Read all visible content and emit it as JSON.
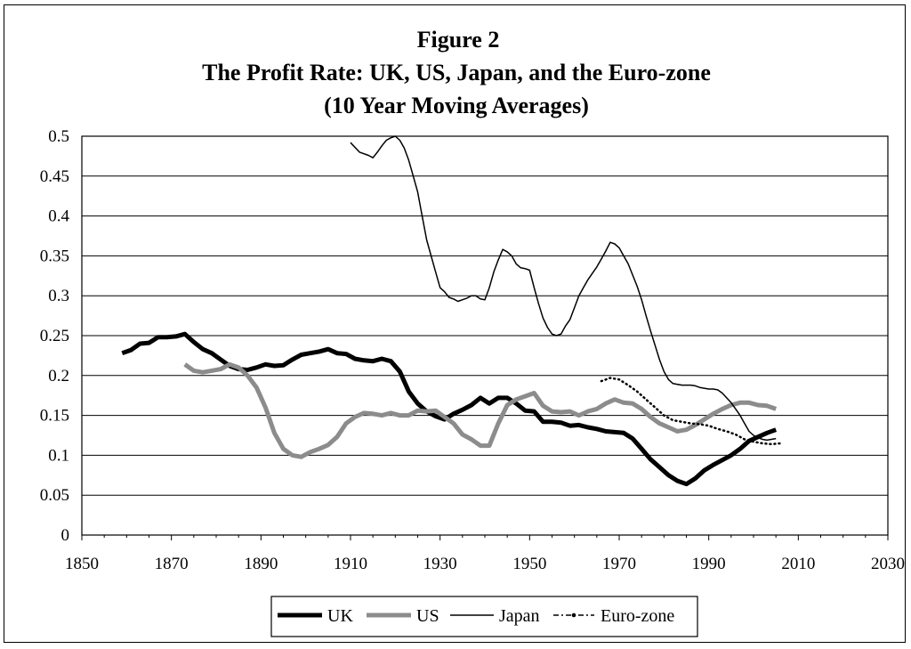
{
  "chart_data": {
    "type": "line",
    "title": "Figure 2",
    "subtitle": "The Profit Rate: UK, US, Japan, and the Euro-zone",
    "subtitle2": "(10 Year Moving Averages)",
    "xlim": [
      1850,
      2030
    ],
    "ylim": [
      0,
      0.5
    ],
    "x_ticks": [
      1850,
      1870,
      1890,
      1910,
      1930,
      1950,
      1970,
      1990,
      2010,
      2030
    ],
    "y_ticks": [
      0,
      0.05,
      0.1,
      0.15,
      0.2,
      0.25,
      0.3,
      0.35,
      0.4,
      0.45,
      0.5
    ],
    "grid": "horizontal",
    "legend_position": "bottom",
    "series": [
      {
        "name": "UK",
        "style": "thick-solid",
        "color": "#000000",
        "x": [
          1859,
          1861,
          1863,
          1865,
          1867,
          1869,
          1871,
          1873,
          1875,
          1877,
          1879,
          1881,
          1883,
          1885,
          1887,
          1889,
          1891,
          1893,
          1895,
          1897,
          1899,
          1901,
          1903,
          1905,
          1907,
          1909,
          1911,
          1913,
          1915,
          1917,
          1919,
          1921,
          1923,
          1925,
          1927,
          1929,
          1931,
          1933,
          1935,
          1937,
          1939,
          1941,
          1943,
          1945,
          1947,
          1949,
          1951,
          1953,
          1955,
          1957,
          1959,
          1961,
          1963,
          1965,
          1967,
          1969,
          1971,
          1973,
          1975,
          1977,
          1979,
          1981,
          1983,
          1985,
          1987,
          1989,
          1991,
          1993,
          1995,
          1997,
          1999,
          2001,
          2003,
          2005
        ],
        "y": [
          0.228,
          0.232,
          0.24,
          0.241,
          0.248,
          0.248,
          0.249,
          0.252,
          0.242,
          0.233,
          0.228,
          0.22,
          0.212,
          0.208,
          0.207,
          0.21,
          0.214,
          0.212,
          0.213,
          0.22,
          0.226,
          0.228,
          0.23,
          0.233,
          0.228,
          0.227,
          0.221,
          0.219,
          0.218,
          0.221,
          0.218,
          0.205,
          0.18,
          0.165,
          0.155,
          0.149,
          0.145,
          0.152,
          0.157,
          0.163,
          0.172,
          0.165,
          0.172,
          0.172,
          0.165,
          0.156,
          0.155,
          0.142,
          0.142,
          0.141,
          0.137,
          0.138,
          0.135,
          0.133,
          0.13,
          0.129,
          0.128,
          0.121,
          0.108,
          0.095,
          0.085,
          0.075,
          0.068,
          0.064,
          0.071,
          0.081,
          0.088,
          0.094,
          0.1,
          0.108,
          0.118,
          0.123,
          0.128,
          0.132
        ]
      },
      {
        "name": "US",
        "style": "thick-gray",
        "color": "#8c8c8c",
        "x": [
          1873,
          1875,
          1877,
          1879,
          1881,
          1883,
          1885,
          1887,
          1889,
          1891,
          1893,
          1895,
          1897,
          1899,
          1901,
          1903,
          1905,
          1907,
          1909,
          1911,
          1913,
          1915,
          1917,
          1919,
          1921,
          1923,
          1925,
          1927,
          1929,
          1931,
          1933,
          1935,
          1937,
          1939,
          1941,
          1943,
          1945,
          1947,
          1949,
          1951,
          1953,
          1955,
          1957,
          1959,
          1961,
          1963,
          1965,
          1967,
          1969,
          1971,
          1973,
          1975,
          1977,
          1979,
          1981,
          1983,
          1985,
          1987,
          1989,
          1991,
          1993,
          1995,
          1997,
          1999,
          2001,
          2003,
          2005
        ],
        "y": [
          0.214,
          0.206,
          0.204,
          0.206,
          0.208,
          0.214,
          0.21,
          0.2,
          0.185,
          0.16,
          0.128,
          0.108,
          0.1,
          0.098,
          0.104,
          0.108,
          0.113,
          0.123,
          0.14,
          0.148,
          0.153,
          0.152,
          0.15,
          0.153,
          0.15,
          0.15,
          0.156,
          0.155,
          0.156,
          0.148,
          0.14,
          0.126,
          0.12,
          0.112,
          0.112,
          0.14,
          0.163,
          0.17,
          0.174,
          0.178,
          0.162,
          0.155,
          0.154,
          0.155,
          0.15,
          0.155,
          0.158,
          0.165,
          0.17,
          0.166,
          0.165,
          0.158,
          0.148,
          0.14,
          0.135,
          0.13,
          0.132,
          0.138,
          0.145,
          0.152,
          0.158,
          0.163,
          0.166,
          0.166,
          0.163,
          0.162,
          0.158
        ]
      },
      {
        "name": "Japan",
        "style": "thin-solid",
        "color": "#000000",
        "x": [
          1910,
          1912,
          1914,
          1915,
          1916,
          1917,
          1918,
          1919,
          1920,
          1921,
          1922,
          1923,
          1924,
          1925,
          1926,
          1927,
          1928,
          1929,
          1930,
          1931,
          1932,
          1933,
          1934,
          1935,
          1936,
          1937,
          1938,
          1939,
          1940,
          1941,
          1942,
          1943,
          1944,
          1945,
          1946,
          1947,
          1948,
          1949,
          1950,
          1951,
          1952,
          1953,
          1954,
          1955,
          1956,
          1957,
          1958,
          1959,
          1960,
          1961,
          1962,
          1963,
          1964,
          1965,
          1966,
          1967,
          1968,
          1969,
          1970,
          1971,
          1972,
          1973,
          1974,
          1975,
          1976,
          1977,
          1978,
          1979,
          1980,
          1981,
          1982,
          1983,
          1984,
          1985,
          1986,
          1987,
          1988,
          1989,
          1990,
          1991,
          1992,
          1993,
          1994,
          1995,
          1996,
          1997,
          1998,
          1999,
          2000,
          2001,
          2002,
          2003,
          2004,
          2005
        ],
        "y": [
          0.492,
          0.48,
          0.476,
          0.473,
          0.48,
          0.488,
          0.495,
          0.498,
          0.5,
          0.495,
          0.485,
          0.47,
          0.45,
          0.43,
          0.4,
          0.37,
          0.35,
          0.33,
          0.31,
          0.305,
          0.298,
          0.296,
          0.293,
          0.295,
          0.297,
          0.3,
          0.3,
          0.296,
          0.295,
          0.31,
          0.33,
          0.345,
          0.358,
          0.355,
          0.35,
          0.34,
          0.335,
          0.334,
          0.332,
          0.31,
          0.29,
          0.272,
          0.26,
          0.252,
          0.25,
          0.252,
          0.262,
          0.27,
          0.285,
          0.3,
          0.31,
          0.32,
          0.328,
          0.336,
          0.346,
          0.356,
          0.367,
          0.365,
          0.36,
          0.35,
          0.34,
          0.326,
          0.312,
          0.295,
          0.275,
          0.256,
          0.238,
          0.22,
          0.205,
          0.195,
          0.19,
          0.189,
          0.188,
          0.188,
          0.188,
          0.187,
          0.185,
          0.184,
          0.183,
          0.183,
          0.182,
          0.178,
          0.172,
          0.166,
          0.158,
          0.15,
          0.14,
          0.13,
          0.125,
          0.122,
          0.12,
          0.119,
          0.12,
          0.121
        ]
      },
      {
        "name": "Euro-zone",
        "style": "dotted",
        "color": "#000000",
        "x": [
          1966,
          1968,
          1970,
          1972,
          1974,
          1976,
          1978,
          1980,
          1982,
          1984,
          1986,
          1988,
          1990,
          1992,
          1994,
          1996,
          1998,
          2000,
          2002,
          2004,
          2006
        ],
        "y": [
          0.193,
          0.197,
          0.195,
          0.188,
          0.18,
          0.17,
          0.16,
          0.15,
          0.144,
          0.142,
          0.14,
          0.139,
          0.137,
          0.133,
          0.13,
          0.126,
          0.12,
          0.117,
          0.115,
          0.114,
          0.115
        ]
      }
    ]
  }
}
